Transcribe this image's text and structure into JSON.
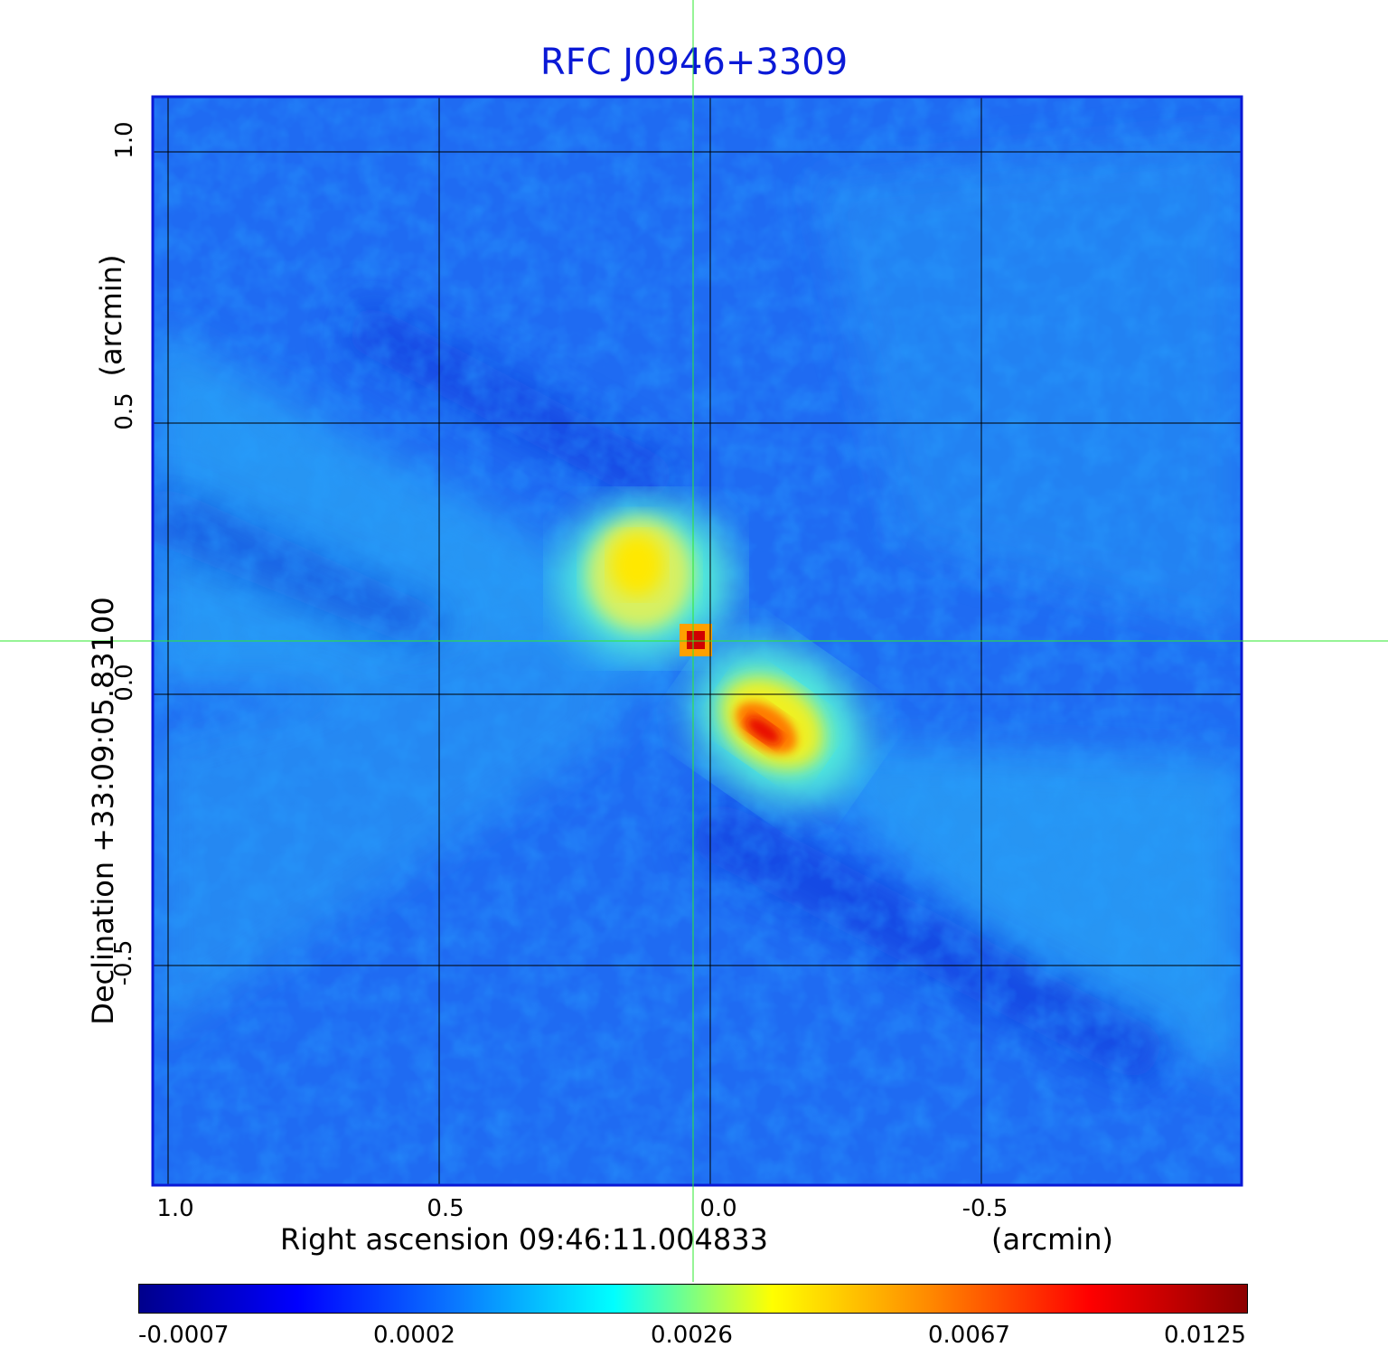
{
  "title": "RFC J0946+3309",
  "xaxis": {
    "label_left": "Right ascension  09:46:11.004833",
    "label_right": "(arcmin)",
    "ticks": [
      "1.0",
      "0.5",
      "0.0",
      "-0.5"
    ]
  },
  "yaxis": {
    "label_main": "Declination  +33:09:05.83100",
    "label_units": "(arcmin)",
    "ticks": [
      "1.0",
      "0.5",
      "0.0",
      "-0.5"
    ]
  },
  "colorbar": {
    "ticks": [
      "-0.0007",
      "0.0002",
      "0.0026",
      "0.0067",
      "0.0125"
    ],
    "colors": [
      "#00008c",
      "#0000ff",
      "#0a78ff",
      "#00ffff",
      "#ffff00",
      "#ff8800",
      "#ff0000",
      "#8c0000"
    ]
  },
  "colors": {
    "title": "#0a19d6",
    "frame": "#0a19d6",
    "crosshair": "#2ee82e",
    "grid": "#000000"
  }
}
